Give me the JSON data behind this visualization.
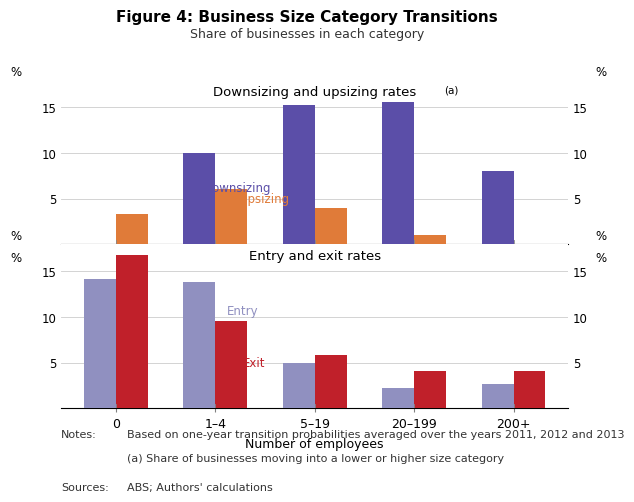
{
  "title": "Figure 4: Business Size Category Transitions",
  "subtitle": "Share of businesses in each category",
  "categories": [
    "0",
    "1–4",
    "5–19",
    "20–199",
    "200+"
  ],
  "xlabel": "Number of employees",
  "top_panel": {
    "title": "Downsizing and upsizing rates",
    "title_sup": "(a)",
    "downsizing": [
      0,
      10,
      15.3,
      15.6,
      8
    ],
    "upsizing": [
      3.3,
      6.1,
      4.0,
      1.0,
      0
    ],
    "downsizing_color": "#5b4ea8",
    "upsizing_color": "#e07b39",
    "ylim": [
      0,
      18
    ],
    "yticks": [
      5,
      10,
      15
    ],
    "downsizing_label": "Downsizing",
    "upsizing_label": "Upsizing"
  },
  "bottom_panel": {
    "title": "Entry and exit rates",
    "entry": [
      14.2,
      13.8,
      5.0,
      2.2,
      2.7
    ],
    "exit": [
      16.8,
      9.6,
      5.8,
      4.1,
      4.1
    ],
    "entry_color": "#9090c0",
    "exit_color": "#c0202a",
    "ylim": [
      0,
      18
    ],
    "yticks": [
      5,
      10,
      15
    ],
    "entry_label": "Entry",
    "exit_label": "Exit"
  },
  "bar_width": 0.32,
  "background_color": "#ffffff",
  "note_line1": "Based on one-year transition probabilities averaged over the years 2011, 2012 and 2013",
  "note_line2": "(a) Share of businesses moving into a lower or higher size category",
  "sources_text": "ABS; Authors' calculations"
}
